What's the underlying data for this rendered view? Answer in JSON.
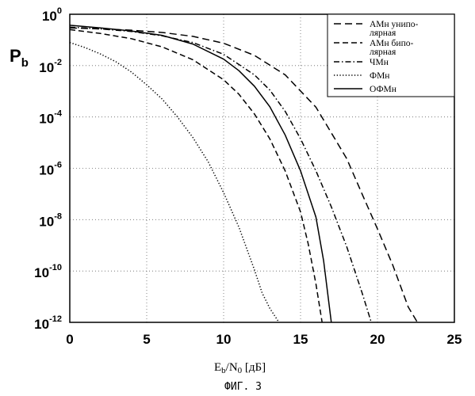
{
  "caption": "ФИГ. 3",
  "chart_data": {
    "type": "line",
    "xlabel": {
      "main": "E",
      "sub_b": "b",
      "slash": "/N",
      "sub_0": "0",
      "unit": " [дБ]"
    },
    "ylabel": {
      "main": "P",
      "sub": "b"
    },
    "xlim": [
      0,
      25
    ],
    "ylim_log10": [
      -12,
      0
    ],
    "y_scale": "log",
    "grid": true,
    "legend_position": "top-right",
    "x_ticks": [
      "0",
      "5",
      "10",
      "15",
      "20",
      "25"
    ],
    "y_ticks": [
      {
        "base": "10",
        "exp": "0"
      },
      {
        "base": "10",
        "exp": "-2"
      },
      {
        "base": "10",
        "exp": "-4"
      },
      {
        "base": "10",
        "exp": "-6"
      },
      {
        "base": "10",
        "exp": "-8"
      },
      {
        "base": "10",
        "exp": "-10"
      },
      {
        "base": "10",
        "exp": "-12"
      }
    ],
    "legend_entries": [
      {
        "lines": [
          "АМн унипо-",
          "лярная"
        ],
        "style": "longdash"
      },
      {
        "lines": [
          "АМн бипо-",
          "лярная"
        ],
        "style": "dash"
      },
      {
        "lines": [
          "ЧМн"
        ],
        "style": "dashdot"
      },
      {
        "lines": [
          "ФМн"
        ],
        "style": "dot"
      },
      {
        "lines": [
          "ОФМн"
        ],
        "style": "solid"
      }
    ],
    "series": [
      {
        "style": "longdash",
        "x": [
          0,
          2,
          4,
          6,
          8,
          10,
          12,
          14,
          16,
          18,
          19,
          20,
          21,
          22,
          22.6
        ],
        "y_log10": [
          -0.53,
          -0.57,
          -0.62,
          -0.71,
          -0.86,
          -1.13,
          -1.6,
          -2.36,
          -3.62,
          -5.62,
          -7.0,
          -8.36,
          -9.78,
          -11.4,
          -12
        ]
      },
      {
        "style": "dash",
        "x": [
          0,
          2,
          4,
          6,
          8,
          10,
          11,
          12,
          13,
          14,
          15,
          15.5,
          16,
          16.4
        ],
        "y_log10": [
          -0.6,
          -0.75,
          -0.95,
          -1.27,
          -1.77,
          -2.55,
          -3.12,
          -3.88,
          -4.85,
          -6.1,
          -7.7,
          -8.95,
          -10.5,
          -12
        ]
      },
      {
        "style": "dashdot",
        "x": [
          0,
          2,
          4,
          6,
          8,
          10,
          12,
          13,
          14,
          15,
          16,
          17,
          18,
          19,
          19.6
        ],
        "y_log10": [
          -0.5,
          -0.57,
          -0.67,
          -0.84,
          -1.1,
          -1.56,
          -2.36,
          -2.95,
          -3.78,
          -4.85,
          -6.1,
          -7.5,
          -9.05,
          -10.85,
          -12
        ]
      },
      {
        "style": "dot",
        "x": [
          0,
          1,
          2,
          3,
          4,
          5,
          6,
          7,
          8,
          9,
          10,
          11,
          12,
          12.5,
          13,
          13.6
        ],
        "y_log10": [
          -1.1,
          -1.3,
          -1.55,
          -1.85,
          -2.25,
          -2.75,
          -3.3,
          -4.0,
          -4.8,
          -5.75,
          -6.95,
          -8.3,
          -9.95,
          -10.85,
          -11.45,
          -12
        ]
      },
      {
        "style": "solid",
        "x": [
          0,
          2,
          4,
          6,
          8,
          10,
          11,
          12,
          13,
          14,
          15,
          16,
          16.5,
          17
        ],
        "y_log10": [
          -0.43,
          -0.53,
          -0.65,
          -0.82,
          -1.16,
          -1.75,
          -2.2,
          -2.8,
          -3.6,
          -4.7,
          -6.1,
          -7.9,
          -9.6,
          -12
        ]
      }
    ]
  }
}
